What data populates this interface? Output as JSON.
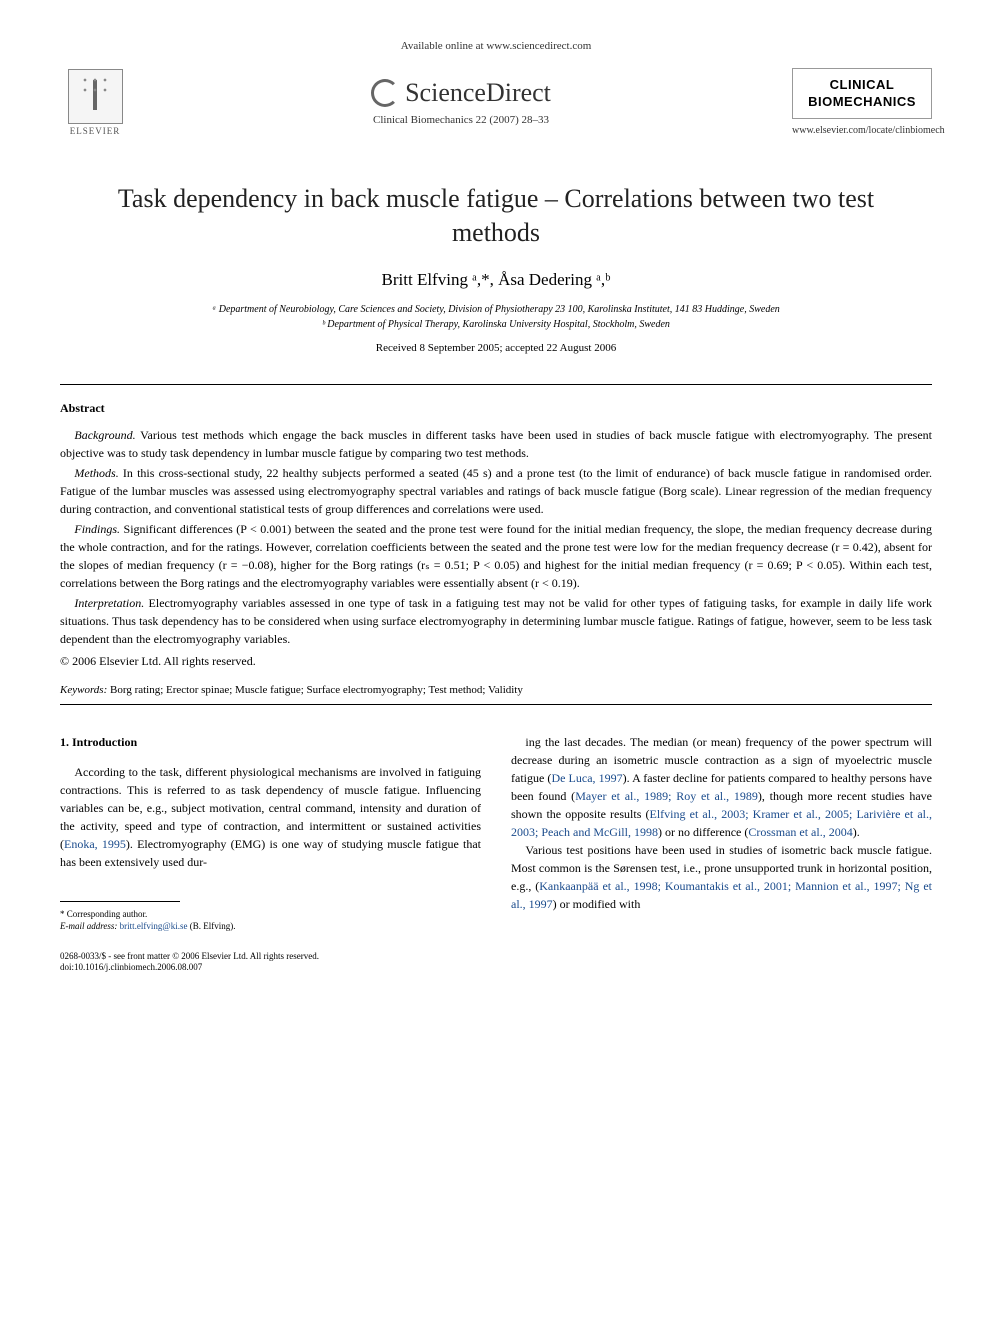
{
  "header": {
    "available_text": "Available online at www.sciencedirect.com",
    "sciencedirect": "ScienceDirect",
    "citation": "Clinical Biomechanics 22 (2007) 28–33",
    "elsevier": "ELSEVIER",
    "journal_name_line1": "CLINICAL",
    "journal_name_line2": "BIOMECHANICS",
    "journal_url": "www.elsevier.com/locate/clinbiomech"
  },
  "title": "Task dependency in back muscle fatigue – Correlations between two test methods",
  "authors": "Britt Elfving ᵃ,*, Åsa Dedering ᵃ,ᵇ",
  "affiliations": {
    "a": "ᵃ Department of Neurobiology, Care Sciences and Society, Division of Physiotherapy 23 100, Karolinska Institutet, 141 83 Huddinge, Sweden",
    "b": "ᵇ Department of Physical Therapy, Karolinska University Hospital, Stockholm, Sweden"
  },
  "dates": "Received 8 September 2005; accepted 22 August 2006",
  "abstract": {
    "heading": "Abstract",
    "background_label": "Background.",
    "background": " Various test methods which engage the back muscles in different tasks have been used in studies of back muscle fatigue with electromyography. The present objective was to study task dependency in lumbar muscle fatigue by comparing two test methods.",
    "methods_label": "Methods.",
    "methods": " In this cross-sectional study, 22 healthy subjects performed a seated (45 s) and a prone test (to the limit of endurance) of back muscle fatigue in randomised order. Fatigue of the lumbar muscles was assessed using electromyography spectral variables and ratings of back muscle fatigue (Borg scale). Linear regression of the median frequency during contraction, and conventional statistical tests of group differences and correlations were used.",
    "findings_label": "Findings.",
    "findings": " Significant differences (P < 0.001) between the seated and the prone test were found for the initial median frequency, the slope, the median frequency decrease during the whole contraction, and for the ratings. However, correlation coefficients between the seated and the prone test were low for the median frequency decrease (r = 0.42), absent for the slopes of median frequency (r = −0.08), higher for the Borg ratings (rₛ = 0.51; P < 0.05) and highest for the initial median frequency (r = 0.69; P < 0.05). Within each test, correlations between the Borg ratings and the electromyography variables were essentially absent (r < 0.19).",
    "interpretation_label": "Interpretation.",
    "interpretation": " Electromyography variables assessed in one type of task in a fatiguing test may not be valid for other types of fatiguing tasks, for example in daily life work situations. Thus task dependency has to be considered when using surface electromyography in determining lumbar muscle fatigue. Ratings of fatigue, however, seem to be less task dependent than the electromyography variables.",
    "copyright": "© 2006 Elsevier Ltd. All rights reserved."
  },
  "keywords": {
    "label": "Keywords:",
    "text": " Borg rating; Erector spinae; Muscle fatigue; Surface electromyography; Test method; Validity"
  },
  "body": {
    "section_num": "1. Introduction",
    "col1_p1a": "According to the task, different physiological mechanisms are involved in fatiguing contractions. This is referred to as task dependency of muscle fatigue. Influencing variables can be, e.g., subject motivation, central command, intensity and duration of the activity, speed and type of contraction, and intermittent or sustained activities (",
    "ref_enoka": "Enoka, 1995",
    "col1_p1b": "). Electromyography (EMG) is one way of studying muscle fatigue that has been extensively used dur-",
    "col2_p1a": "ing the last decades. The median (or mean) frequency of the power spectrum will decrease during an isometric muscle contraction as a sign of myoelectric muscle fatigue (",
    "ref_deluca": "De Luca, 1997",
    "col2_p1b": "). A faster decline for patients compared to healthy persons have been found (",
    "ref_mayer_roy": "Mayer et al., 1989; Roy et al., 1989",
    "col2_p1c": "), though more recent studies have shown the opposite results (",
    "ref_elfving_etc": "Elfving et al., 2003; Kramer et al., 2005; Larivière et al., 2003; Peach and McGill, 1998",
    "col2_p1d": ") or no difference (",
    "ref_crossman": "Crossman et al., 2004",
    "col2_p1e": ").",
    "col2_p2a": "Various test positions have been used in studies of isometric back muscle fatigue. Most common is the Sørensen test, i.e., prone unsupported trunk in horizontal position, e.g., (",
    "ref_kankaanpaa_etc": "Kankaanpää et al., 1998; Koumantakis et al., 2001; Mannion et al., 1997; Ng et al., 1997",
    "col2_p2b": ") or modified with"
  },
  "footnote": {
    "corresponding": "* Corresponding author.",
    "email_label": "E-mail address:",
    "email": " britt.elfving@ki.se",
    "email_suffix": " (B. Elfving)."
  },
  "footer": {
    "line1": "0268-0033/$ - see front matter © 2006 Elsevier Ltd. All rights reserved.",
    "line2": "doi:10.1016/j.clinbiomech.2006.08.007"
  }
}
